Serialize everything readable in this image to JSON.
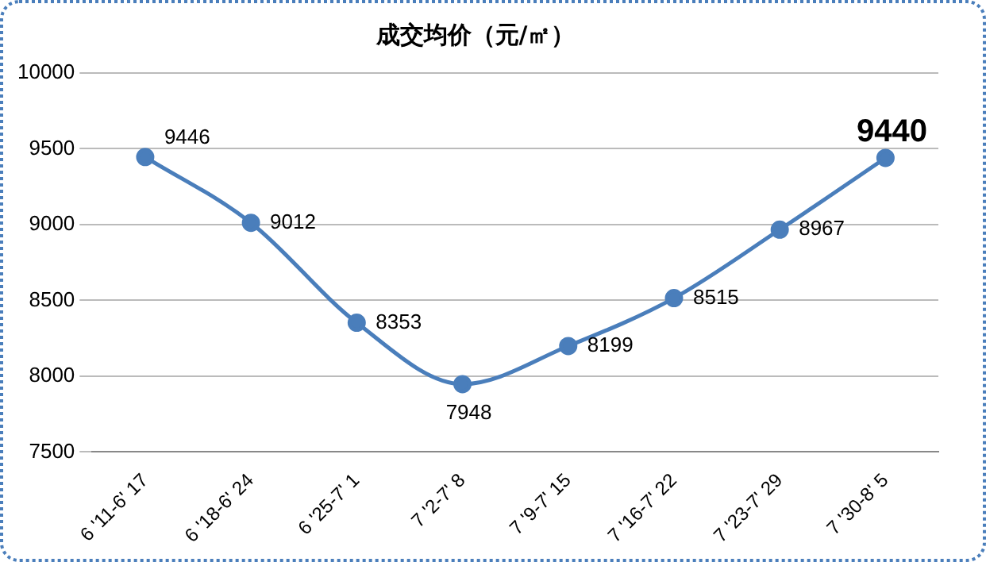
{
  "chart_data": {
    "type": "line",
    "title": "成交均价（元/㎡）",
    "categories": [
      "6 '11-6' 17",
      "6 '18-6' 24",
      "6 '25-7' 1",
      "7 '2-7' 8",
      "7 '9-7' 15",
      "7 '16-7' 22",
      "7 '23-7' 29",
      "7 '30-8' 5"
    ],
    "series": [
      {
        "color": "#4a7ebb",
        "values": [
          9446,
          9012,
          8353,
          7948,
          8199,
          8515,
          8967,
          9440
        ]
      }
    ],
    "ylim": [
      7500,
      10000
    ],
    "yticks": [
      7500,
      8000,
      8500,
      9000,
      9500,
      10000
    ],
    "grid": "y",
    "legend": false,
    "marker": "circle",
    "data_labels": true
  }
}
